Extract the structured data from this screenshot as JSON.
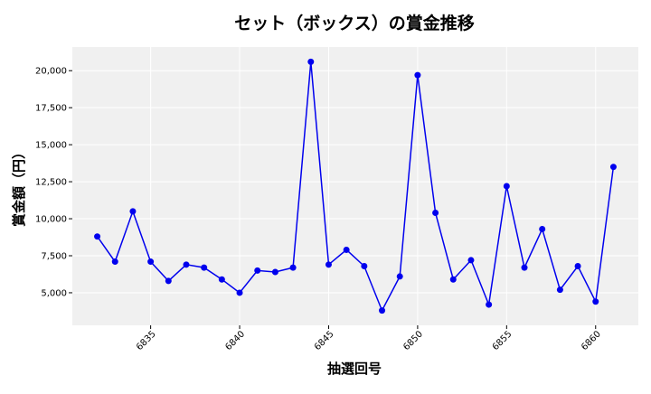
{
  "chart_data": {
    "type": "line",
    "title": "セット（ボックス）の賞金推移",
    "xlabel": "抽選回号",
    "ylabel": "賞金額（円）",
    "x": [
      6832,
      6833,
      6834,
      6835,
      6836,
      6837,
      6838,
      6839,
      6840,
      6841,
      6842,
      6843,
      6844,
      6845,
      6846,
      6847,
      6848,
      6849,
      6850,
      6851,
      6852,
      6853,
      6854,
      6855,
      6856,
      6857,
      6858,
      6859,
      6860,
      6861
    ],
    "series": [
      {
        "values": [
          8800,
          7100,
          10500,
          7100,
          5800,
          6900,
          6700,
          5900,
          5000,
          6500,
          6400,
          6700,
          20600,
          6900,
          7900,
          6800,
          3800,
          6100,
          19700,
          10400,
          5900,
          7200,
          4200,
          12200,
          6700,
          9300,
          5200,
          6800,
          4400,
          13500
        ]
      }
    ],
    "xlim": [
      6830.6,
      6862.4
    ],
    "ylim": [
      2800,
      21600
    ],
    "xticks": [
      6835,
      6840,
      6845,
      6850,
      6855,
      6860
    ],
    "xtick_labels": [
      "6835",
      "6840",
      "6845",
      "6850",
      "6855",
      "6860"
    ],
    "yticks": [
      5000,
      7500,
      10000,
      12500,
      15000,
      17500,
      20000
    ],
    "ytick_labels": [
      "5,000",
      "7,500",
      "10,000",
      "12,500",
      "15,000",
      "17,500",
      "20,000"
    ],
    "grid": true,
    "legend": "none",
    "colors": {
      "line": "#0000ee",
      "marker": "#0000ee",
      "plot_bg": "#f0f0f0",
      "grid": "#ffffff",
      "text": "#000000"
    }
  }
}
